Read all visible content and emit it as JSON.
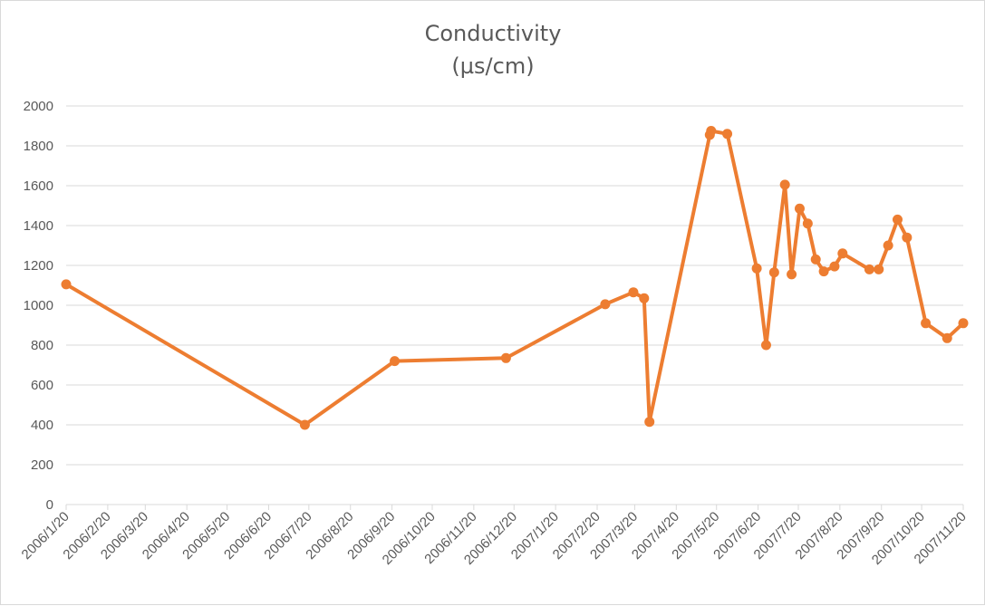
{
  "chart_data": {
    "type": "line",
    "title": "Conductivity",
    "subtitle": "(µs/cm)",
    "xlabel": "",
    "ylabel": "",
    "ylim": [
      0,
      2000
    ],
    "y_ticks": [
      "0",
      "200",
      "400",
      "600",
      "800",
      "1000",
      "1200",
      "1400",
      "1600",
      "1800",
      "2000"
    ],
    "x_range": [
      "2006/1/20",
      "2007/11/20"
    ],
    "x_tick_labels": [
      "2006/1/20",
      "2006/2/20",
      "2006/3/20",
      "2006/4/20",
      "2006/5/20",
      "2006/6/20",
      "2006/7/20",
      "2006/8/20",
      "2006/9/20",
      "2006/10/20",
      "2006/11/20",
      "2006/12/20",
      "2007/1/20",
      "2007/2/20",
      "2007/3/20",
      "2007/4/20",
      "2007/5/20",
      "2007/6/20",
      "2007/7/20",
      "2007/8/20",
      "2007/9/20",
      "2007/10/20",
      "2007/11/20"
    ],
    "grid": true,
    "legend": "none",
    "series": [
      {
        "color": "#ed7d31",
        "points": [
          {
            "x": "2006-01-20",
            "y": 1105
          },
          {
            "x": "2006-07-17",
            "y": 400
          },
          {
            "x": "2006-09-22",
            "y": 720
          },
          {
            "x": "2006-12-14",
            "y": 735
          },
          {
            "x": "2007-02-26",
            "y": 1005
          },
          {
            "x": "2007-03-19",
            "y": 1065
          },
          {
            "x": "2007-03-27",
            "y": 1035
          },
          {
            "x": "2007-03-31",
            "y": 415
          },
          {
            "x": "2007-05-15",
            "y": 1855
          },
          {
            "x": "2007-05-16",
            "y": 1875
          },
          {
            "x": "2007-05-28",
            "y": 1860
          },
          {
            "x": "2007-06-19",
            "y": 1185
          },
          {
            "x": "2007-06-26",
            "y": 800
          },
          {
            "x": "2007-07-02",
            "y": 1165
          },
          {
            "x": "2007-07-10",
            "y": 1605
          },
          {
            "x": "2007-07-15",
            "y": 1155
          },
          {
            "x": "2007-07-21",
            "y": 1485
          },
          {
            "x": "2007-07-27",
            "y": 1410
          },
          {
            "x": "2007-08-02",
            "y": 1230
          },
          {
            "x": "2007-08-08",
            "y": 1170
          },
          {
            "x": "2007-08-16",
            "y": 1195
          },
          {
            "x": "2007-08-22",
            "y": 1260
          },
          {
            "x": "2007-09-11",
            "y": 1180
          },
          {
            "x": "2007-09-18",
            "y": 1180
          },
          {
            "x": "2007-09-25",
            "y": 1300
          },
          {
            "x": "2007-10-02",
            "y": 1430
          },
          {
            "x": "2007-10-09",
            "y": 1340
          },
          {
            "x": "2007-10-23",
            "y": 910
          },
          {
            "x": "2007-11-08",
            "y": 835
          },
          {
            "x": "2007-11-20",
            "y": 910
          }
        ]
      }
    ]
  }
}
